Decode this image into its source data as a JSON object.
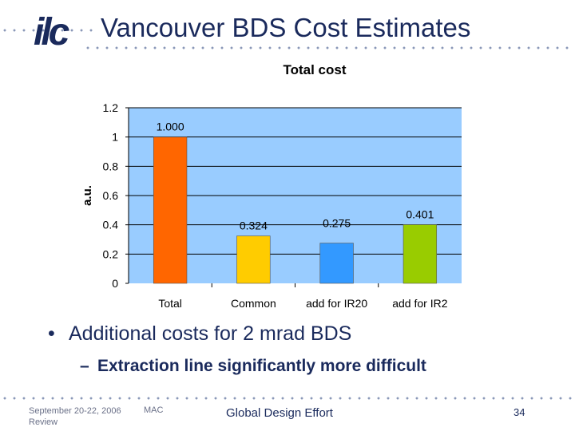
{
  "slide": {
    "title": "Vancouver BDS Cost Estimates",
    "logo_text": "ilc",
    "bullet_symbol": "•",
    "bullet_1": "Additional costs for 2 mrad BDS",
    "sub_dash": "–",
    "bullet_2": "Extraction line significantly more difficult",
    "footer_left": "September 20-22, 2006 Review",
    "footer_mac": "MAC",
    "footer_center": "Global Design Effort",
    "page_number": "34"
  },
  "colors": {
    "title_text": "#1a2a5c",
    "plot_background": "#99ccff",
    "bar_total": "#ff6600",
    "bar_common": "#ffcc00",
    "bar_ir20": "#3399ff",
    "bar_ir2": "#99cc00"
  },
  "chart_data": {
    "type": "bar",
    "title": "Total cost",
    "ylabel": "a.u.",
    "xlabel": "",
    "categories": [
      "Total",
      "Common",
      "add for IR20",
      "add for IR2"
    ],
    "values": [
      1.0,
      0.324,
      0.275,
      0.401
    ],
    "data_labels": [
      "1.000",
      "0.324",
      "0.275",
      "0.401"
    ],
    "bar_colors": [
      "#ff6600",
      "#ffcc00",
      "#3399ff",
      "#99cc00"
    ],
    "ylim": [
      0,
      1.2
    ],
    "yticks": [
      "0",
      "0.2",
      "0.4",
      "0.6",
      "0.8",
      "1",
      "1.2"
    ],
    "grid": true,
    "legend": "none"
  }
}
